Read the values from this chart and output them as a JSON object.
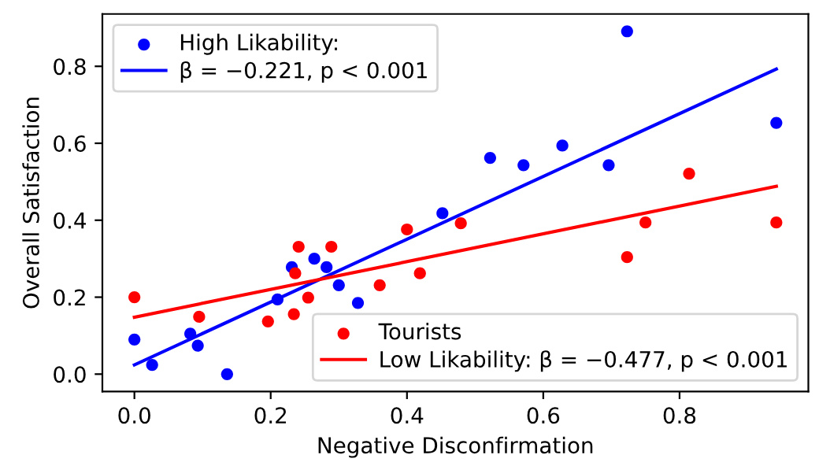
{
  "chart_data": {
    "type": "scatter",
    "xlabel": "Negative Disconfirmation",
    "ylabel": "Overall Satisfaction",
    "xlim": [
      -0.047,
      0.989
    ],
    "ylim": [
      -0.045,
      0.936
    ],
    "xticks": [
      {
        "value": 0,
        "label": "0.0"
      },
      {
        "value": 0.2,
        "label": "0.2"
      },
      {
        "value": 0.4,
        "label": "0.4"
      },
      {
        "value": 0.6,
        "label": "0.6"
      },
      {
        "value": 0.8,
        "label": "0.8"
      }
    ],
    "yticks": [
      {
        "value": 0,
        "label": "0.0"
      },
      {
        "value": 0.2,
        "label": "0.2"
      },
      {
        "value": 0.4,
        "label": "0.4"
      },
      {
        "value": 0.6,
        "label": "0.6"
      },
      {
        "value": 0.8,
        "label": "0.8"
      }
    ],
    "legend": [
      "top left",
      "bottom right"
    ],
    "series": [
      {
        "name": "High Likability:",
        "color": "#0000ff",
        "marker": "circle",
        "x": [
          0,
          0.026,
          0.082,
          0.093,
          0.136,
          0.21,
          0.231,
          0.264,
          0.282,
          0.3,
          0.328,
          0.452,
          0.522,
          0.571,
          0.628,
          0.696,
          0.723,
          0.942
        ],
        "values": [
          0.09,
          0.024,
          0.105,
          0.074,
          0.0,
          0.194,
          0.278,
          0.3,
          0.278,
          0.231,
          0.185,
          0.418,
          0.562,
          0.543,
          0.594,
          0.543,
          0.891,
          0.653
        ]
      },
      {
        "name": "β = −0.221, p < 0.001",
        "type": "line",
        "color": "#0000ff",
        "marker": "none",
        "line_style": "solid",
        "x": [
          0,
          0.942
        ],
        "values": [
          0.024,
          0.793
        ]
      },
      {
        "name": "Tourists",
        "color": "#ff0000",
        "marker": "circle",
        "x": [
          0,
          0.095,
          0.196,
          0.234,
          0.236,
          0.241,
          0.255,
          0.289,
          0.36,
          0.4,
          0.419,
          0.479,
          0.723,
          0.75,
          0.814,
          0.942
        ],
        "values": [
          0.2,
          0.149,
          0.137,
          0.156,
          0.262,
          0.331,
          0.199,
          0.331,
          0.231,
          0.376,
          0.262,
          0.392,
          0.304,
          0.394,
          0.521,
          0.394
        ]
      },
      {
        "name": "Low Likability: β = −0.477, p < 0.001",
        "type": "line",
        "color": "#ff0000",
        "marker": "none",
        "line_style": "solid",
        "x": [
          0,
          0.942
        ],
        "values": [
          0.148,
          0.488
        ]
      }
    ]
  }
}
